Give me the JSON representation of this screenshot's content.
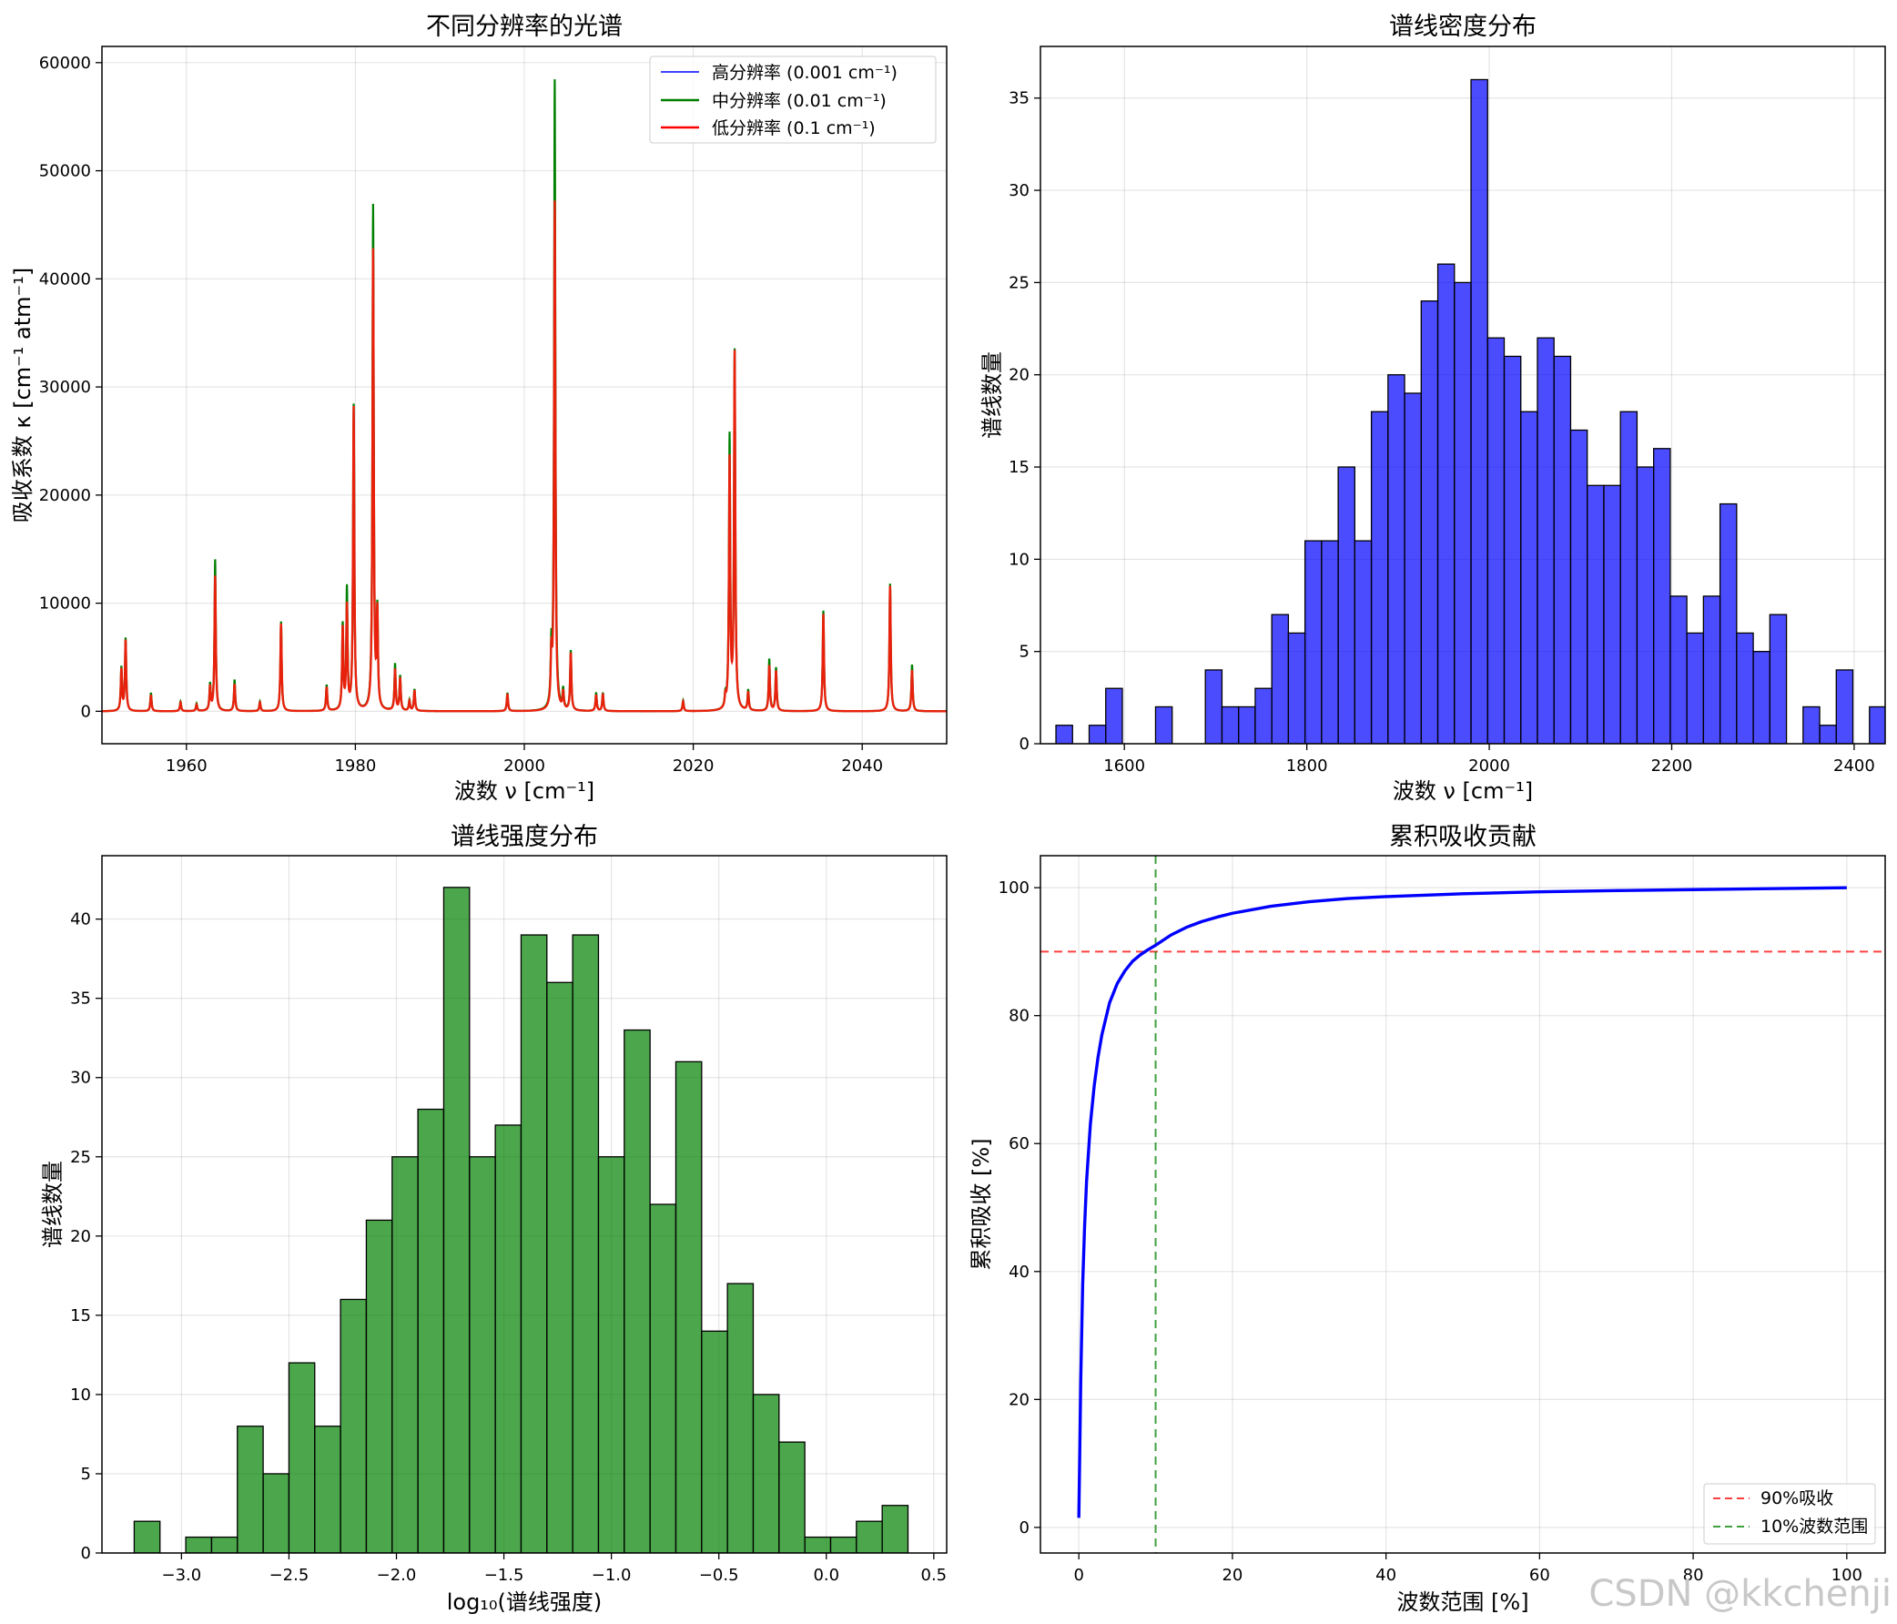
{
  "watermark": "CSDN @kkchenji",
  "chart_data": [
    {
      "type": "line",
      "title": "不同分辨率的光谱",
      "xlabel": "波数 ν [cm⁻¹]",
      "ylabel": "吸收系数 κ [cm⁻¹ atm⁻¹]",
      "xlim": [
        1950,
        2050
      ],
      "ylim": [
        -3000,
        61500
      ],
      "xticks": [
        1960,
        1980,
        2000,
        2020,
        2040
      ],
      "yticks": [
        0,
        10000,
        20000,
        30000,
        40000,
        50000,
        60000
      ],
      "grid": true,
      "legend": "top-right",
      "baseline": 0,
      "series": [
        {
          "name": "高分辨率 (0.001 cm⁻¹)",
          "color": "#0000ff"
        },
        {
          "name": "中分辨率 (0.01 cm⁻¹)",
          "color": "#008000"
        },
        {
          "name": "低分辨率 (0.1 cm⁻¹)",
          "color": "#ff0000"
        }
      ],
      "peaks": [
        {
          "x": 1952.3,
          "green": 4000,
          "red": 3800
        },
        {
          "x": 1952.8,
          "green": 6700,
          "red": 6500
        },
        {
          "x": 1955.8,
          "green": 1700,
          "red": 1500
        },
        {
          "x": 1959.3,
          "green": 900,
          "red": 800
        },
        {
          "x": 1961.2,
          "green": 700,
          "red": 600
        },
        {
          "x": 1962.8,
          "green": 2400,
          "red": 2200
        },
        {
          "x": 1963.4,
          "green": 14000,
          "red": 12500
        },
        {
          "x": 1965.7,
          "green": 2900,
          "red": 2500
        },
        {
          "x": 1968.7,
          "green": 900,
          "red": 800
        },
        {
          "x": 1971.2,
          "green": 8300,
          "red": 8100
        },
        {
          "x": 1976.6,
          "green": 2400,
          "red": 2200
        },
        {
          "x": 1978.5,
          "green": 7800,
          "red": 7500
        },
        {
          "x": 1979.0,
          "green": 11100,
          "red": 9500
        },
        {
          "x": 1979.8,
          "green": 28200,
          "red": 28000
        },
        {
          "x": 1982.1,
          "green": 46600,
          "red": 42500
        },
        {
          "x": 1982.6,
          "green": 8800,
          "red": 8700
        },
        {
          "x": 1984.7,
          "green": 4300,
          "red": 3800
        },
        {
          "x": 1985.3,
          "green": 3200,
          "red": 3000
        },
        {
          "x": 1986.4,
          "green": 1000,
          "red": 900
        },
        {
          "x": 1987.0,
          "green": 2000,
          "red": 1900
        },
        {
          "x": 1998.0,
          "green": 1700,
          "red": 1600
        },
        {
          "x": 2003.2,
          "green": 4800,
          "red": 4500
        },
        {
          "x": 2003.6,
          "green": 58200,
          "red": 47000
        },
        {
          "x": 2004.6,
          "green": 1800,
          "red": 1600
        },
        {
          "x": 2005.5,
          "green": 5500,
          "red": 5300
        },
        {
          "x": 2008.5,
          "green": 1700,
          "red": 1500
        },
        {
          "x": 2009.3,
          "green": 1700,
          "red": 1600
        },
        {
          "x": 2018.8,
          "green": 1000,
          "red": 900
        },
        {
          "x": 2023.8,
          "green": 1100,
          "red": 1000
        },
        {
          "x": 2024.3,
          "green": 25100,
          "red": 23000
        },
        {
          "x": 2024.9,
          "green": 33000,
          "red": 32900
        },
        {
          "x": 2026.5,
          "green": 1900,
          "red": 1700
        },
        {
          "x": 2029.0,
          "green": 4800,
          "red": 4200
        },
        {
          "x": 2029.8,
          "green": 4000,
          "red": 3700
        },
        {
          "x": 2035.4,
          "green": 9300,
          "red": 9000
        },
        {
          "x": 2043.3,
          "green": 11800,
          "red": 11600
        },
        {
          "x": 2045.9,
          "green": 4300,
          "red": 3800
        }
      ]
    },
    {
      "type": "bar",
      "subtype": "histogram",
      "title": "谱线密度分布",
      "xlabel": "波数 ν [cm⁻¹]",
      "ylabel": "谱线数量",
      "xlim": [
        1508,
        2434
      ],
      "ylim": [
        0,
        37.8
      ],
      "xticks": [
        1600,
        1800,
        2000,
        2200,
        2400
      ],
      "yticks": [
        0,
        5,
        10,
        15,
        20,
        25,
        30,
        35
      ],
      "grid": true,
      "bin_start": 1525,
      "bin_width": 18.2,
      "color": "#0000ff",
      "values": [
        1,
        0,
        1,
        3,
        0,
        0,
        2,
        0,
        0,
        4,
        2,
        2,
        3,
        7,
        6,
        11,
        11,
        15,
        11,
        18,
        20,
        19,
        24,
        26,
        25,
        36,
        22,
        21,
        18,
        22,
        21,
        17,
        14,
        14,
        18,
        15,
        16,
        8,
        6,
        8,
        13,
        6,
        5,
        7,
        0,
        2,
        1,
        4,
        0,
        2,
        1
      ]
    },
    {
      "type": "bar",
      "subtype": "histogram",
      "title": "谱线强度分布",
      "xlabel": "log₁₀(谱线强度)",
      "ylabel": "谱线数量",
      "xlim": [
        -3.37,
        0.56
      ],
      "ylim": [
        0,
        44
      ],
      "xticks": [
        -3.0,
        -2.5,
        -2.0,
        -1.5,
        -1.0,
        -0.5,
        0.0,
        0.5
      ],
      "xtick_labels": [
        "−3.0",
        "−2.5",
        "−2.0",
        "−1.5",
        "−1.0",
        "−0.5",
        "0.0",
        "0.5"
      ],
      "yticks": [
        0,
        5,
        10,
        15,
        20,
        25,
        30,
        35,
        40
      ],
      "grid": true,
      "bin_start": -3.22,
      "bin_width": 0.12,
      "color": "#008000",
      "values": [
        2,
        0,
        1,
        1,
        8,
        5,
        12,
        8,
        16,
        21,
        25,
        28,
        42,
        25,
        27,
        39,
        36,
        39,
        25,
        33,
        22,
        31,
        14,
        17,
        10,
        7,
        1,
        1,
        2,
        3
      ]
    },
    {
      "type": "line",
      "title": "累积吸收贡献",
      "xlabel": "波数范围 [%]",
      "ylabel": "累积吸收 [%]",
      "xlim": [
        -5,
        105
      ],
      "ylim": [
        -4,
        105
      ],
      "xticks": [
        0,
        20,
        40,
        60,
        80,
        100
      ],
      "yticks": [
        0,
        20,
        40,
        60,
        80,
        100
      ],
      "grid": true,
      "legend": "bottom-right",
      "series": [
        {
          "name": "",
          "color": "#0000ff",
          "x": [
            0,
            0.1,
            0.25,
            0.5,
            0.75,
            1,
            1.5,
            2,
            2.5,
            3,
            4,
            5,
            6,
            7,
            8,
            9,
            10,
            12,
            14,
            16,
            18,
            20,
            25,
            30,
            35,
            40,
            50,
            60,
            70,
            80,
            90,
            100
          ],
          "y": [
            1.5,
            10,
            23,
            38,
            47,
            54,
            63,
            69,
            73.5,
            77,
            82,
            85,
            87,
            88.5,
            89.5,
            90.3,
            91,
            92.6,
            93.8,
            94.7,
            95.4,
            96,
            97.1,
            97.8,
            98.3,
            98.6,
            99.05,
            99.35,
            99.55,
            99.7,
            99.85,
            100
          ]
        }
      ],
      "hlines": [
        {
          "y": 90,
          "name": "90%吸收",
          "color": "#ff0000"
        }
      ],
      "vlines": [
        {
          "x": 10,
          "name": "10%波数范围",
          "color": "#008000"
        }
      ]
    }
  ]
}
